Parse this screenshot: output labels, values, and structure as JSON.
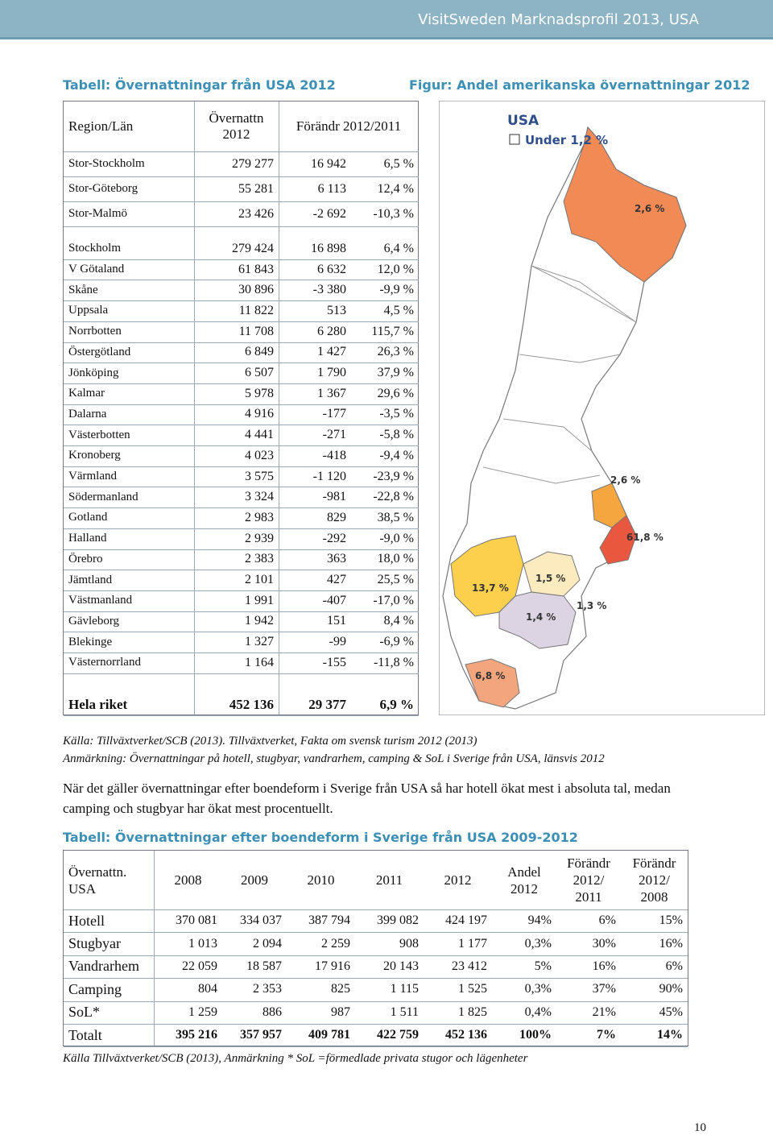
{
  "header": {
    "title": "VisitSweden Marknadsprofil 2013, USA"
  },
  "table1": {
    "title": "Tabell: Övernattningar från USA 2012",
    "columns": [
      "Region/Län",
      "Övernattn 2012",
      "Förändr 2012/2011"
    ],
    "city_rows": [
      [
        "Stor-Stockholm",
        "279 277",
        "16 942",
        "6,5 %"
      ],
      [
        "Stor-Göteborg",
        "55 281",
        "6 113",
        "12,4 %"
      ],
      [
        "Stor-Malmö",
        "23 426",
        "-2 692",
        "-10,3 %"
      ]
    ],
    "rows": [
      [
        "Stockholm",
        "279 424",
        "16 898",
        "6,4 %"
      ],
      [
        "V Götaland",
        "61 843",
        "6 632",
        "12,0 %"
      ],
      [
        "Skåne",
        "30 896",
        "-3 380",
        "-9,9 %"
      ],
      [
        "Uppsala",
        "11 822",
        "513",
        "4,5 %"
      ],
      [
        "Norrbotten",
        "11 708",
        "6 280",
        "115,7 %"
      ],
      [
        "Östergötland",
        "6 849",
        "1 427",
        "26,3 %"
      ],
      [
        "Jönköping",
        "6 507",
        "1 790",
        "37,9 %"
      ],
      [
        "Kalmar",
        "5 978",
        "1 367",
        "29,6 %"
      ],
      [
        "Dalarna",
        "4 916",
        "-177",
        "-3,5 %"
      ],
      [
        "Västerbotten",
        "4 441",
        "-271",
        "-5,8 %"
      ],
      [
        "Kronoberg",
        "4 023",
        "-418",
        "-9,4 %"
      ],
      [
        "Värmland",
        "3 575",
        "-1 120",
        "-23,9 %"
      ],
      [
        "Södermanland",
        "3 324",
        "-981",
        "-22,8 %"
      ],
      [
        "Gotland",
        "2 983",
        "829",
        "38,5 %"
      ],
      [
        "Halland",
        "2 939",
        "-292",
        "-9,0 %"
      ],
      [
        "Örebro",
        "2 383",
        "363",
        "18,0 %"
      ],
      [
        "Jämtland",
        "2 101",
        "427",
        "25,5 %"
      ],
      [
        "Västmanland",
        "1 991",
        "-407",
        "-17,0 %"
      ],
      [
        "Gävleborg",
        "1 942",
        "151",
        "8,4 %"
      ],
      [
        "Blekinge",
        "1 327",
        "-99",
        "-6,9 %"
      ],
      [
        "Västernorrland",
        "1 164",
        "-155",
        "-11,8 %"
      ]
    ],
    "total": [
      "Hela riket",
      "452 136",
      "29 377",
      "6,9 %"
    ]
  },
  "map": {
    "title": "Figur: Andel amerikanska övernattningar 2012",
    "heading": "USA",
    "legend": "Under 1,2 %",
    "labels": [
      "2,6 %",
      "2,6 %",
      "61,8 %",
      "13,7 %",
      "1,5 %",
      "1,4 %",
      "1,3 %",
      "6,8 %"
    ]
  },
  "source1": "Källa: Tillväxtverket/SCB (2013). Tillväxtverket, Fakta om svensk turism 2012 (2013)",
  "note1": "Anmärkning: Övernattningar på hotell, stugbyar, vandrarhem, camping & SoL i Sverige från USA, länsvis 2012",
  "paragraph": "När det gäller övernattningar efter boendeform i Sverige från USA så har hotell ökat mest i absoluta tal, medan camping och stugbyar har ökat mest procentuellt.",
  "table2": {
    "title": "Tabell: Övernattningar efter boendeform i Sverige från USA 2009-2012",
    "columns": [
      "Övernattn. USA",
      "2008",
      "2009",
      "2010",
      "2011",
      "2012",
      "Andel 2012",
      "Förändr 2012/ 2011",
      "Förändr 2012/ 2008"
    ],
    "rows": [
      [
        "Hotell",
        "370 081",
        "334 037",
        "387 794",
        "399 082",
        "424 197",
        "94%",
        "6%",
        "15%"
      ],
      [
        "Stugbyar",
        "1 013",
        "2 094",
        "2 259",
        "908",
        "1 177",
        "0,3%",
        "30%",
        "16%"
      ],
      [
        "Vandrarhem",
        "22 059",
        "18 587",
        "17 916",
        "20 143",
        "23 412",
        "5%",
        "16%",
        "6%"
      ],
      [
        "Camping",
        "804",
        "2 353",
        "825",
        "1 115",
        "1 525",
        "0,3%",
        "37%",
        "90%"
      ],
      [
        "SoL*",
        "1 259",
        "886",
        "987",
        "1 511",
        "1 825",
        "0,4%",
        "21%",
        "45%"
      ]
    ],
    "total": [
      "Totalt",
      "395 216",
      "357 957",
      "409 781",
      "422 759",
      "452 136",
      "100%",
      "7%",
      "14%"
    ]
  },
  "source2": "Källa Tillväxtverket/SCB (2013), Anmärkning * SoL =förmedlade privata stugor och lägenheter",
  "page_number": "10"
}
